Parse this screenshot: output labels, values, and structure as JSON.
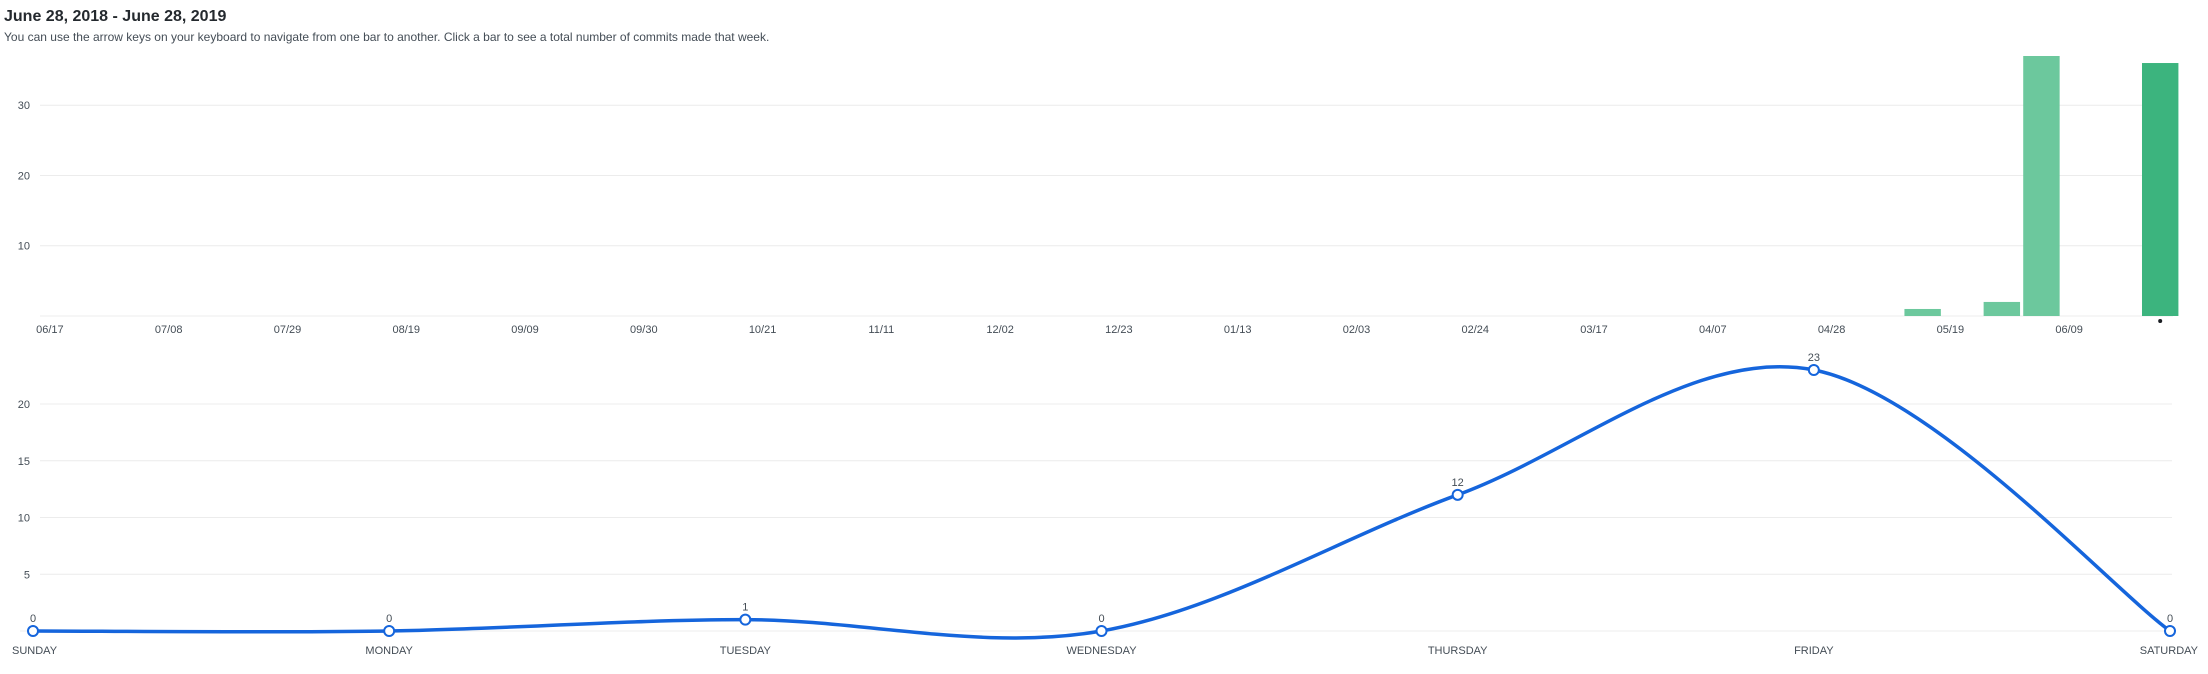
{
  "header": {
    "title": "June 28, 2018 - June 28, 2019",
    "subtitle": "You can use the arrow keys on your keyboard to navigate from one bar to another. Click a bar to see a total number of commits made that week."
  },
  "colors": {
    "bar_light": "#6cc89d",
    "bar_dark": "#3cb47e",
    "line": "#1565dc",
    "grid": "#ececec",
    "axis_text": "#444d56"
  },
  "chart_data": [
    {
      "type": "bar",
      "title": "",
      "xlabel": "",
      "ylabel": "",
      "ylim": [
        0,
        37
      ],
      "yticks": [
        10,
        20,
        30
      ],
      "grid": true,
      "legend": "none",
      "x_tick_labels": [
        "06/17",
        "07/08",
        "07/29",
        "08/19",
        "09/09",
        "09/30",
        "10/21",
        "11/11",
        "12/02",
        "12/23",
        "01/13",
        "02/03",
        "02/24",
        "03/17",
        "04/07",
        "04/28",
        "05/19",
        "06/09"
      ],
      "week_count": 54,
      "x_tick_week_indices": [
        0,
        3,
        6,
        9,
        12,
        15,
        18,
        21,
        24,
        27,
        30,
        33,
        36,
        39,
        42,
        45,
        48,
        51
      ],
      "values": [
        0,
        0,
        0,
        0,
        0,
        0,
        0,
        0,
        0,
        0,
        0,
        0,
        0,
        0,
        0,
        0,
        0,
        0,
        0,
        0,
        0,
        0,
        0,
        0,
        0,
        0,
        0,
        0,
        0,
        0,
        0,
        0,
        0,
        0,
        0,
        0,
        0,
        0,
        0,
        0,
        0,
        0,
        0,
        0,
        0,
        0,
        0,
        1,
        0,
        2,
        37,
        0,
        0,
        36
      ],
      "selected_index": 53
    },
    {
      "type": "line",
      "title": "",
      "xlabel": "",
      "ylabel": "",
      "ylim": [
        0,
        23
      ],
      "yticks": [
        5,
        10,
        15,
        20
      ],
      "grid": true,
      "legend": "none",
      "categories": [
        "SUNDAY",
        "MONDAY",
        "TUESDAY",
        "WEDNESDAY",
        "THURSDAY",
        "FRIDAY",
        "SATURDAY"
      ],
      "values": [
        0,
        0,
        1,
        0,
        12,
        23,
        0
      ],
      "data_labels": [
        "0",
        "0",
        "1",
        "0",
        "12",
        "23",
        "0"
      ]
    }
  ]
}
